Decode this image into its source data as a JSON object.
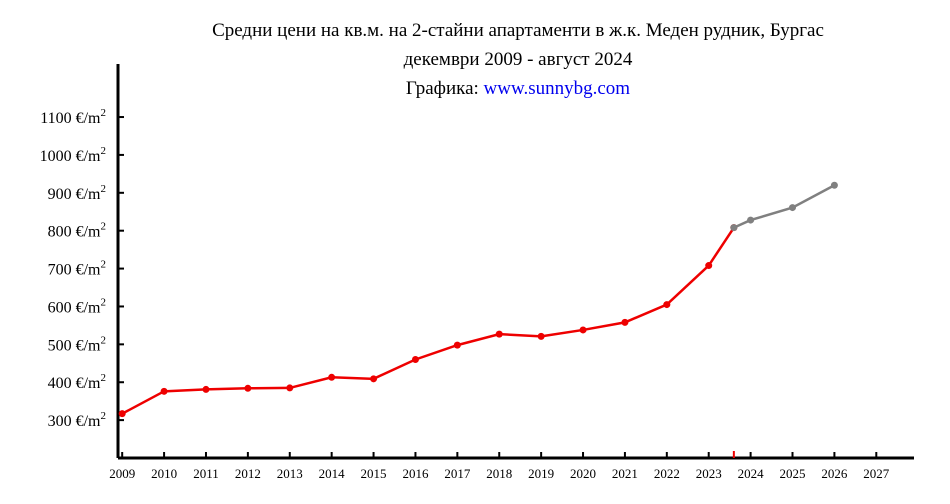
{
  "title": {
    "line1": "Средни цени на кв.м. на 2-стайни апартаменти в ж.к. Меден рудник, Бургас",
    "line2": "декември 2009 - август 2024",
    "credit_prefix": "Графика: ",
    "credit_link": "www.sunnybg.com"
  },
  "colors": {
    "actual": "#ee0000",
    "forecast": "#808080",
    "link": "#0000ee",
    "axis": "#000000"
  },
  "chart_data": {
    "type": "line",
    "title": "Средни цени на кв.м. на 2-стайни апартаменти в ж.к. Меден рудник, Бургас",
    "subtitle": "декември 2009 - август 2024",
    "y_tick_values": [
      300,
      400,
      500,
      600,
      700,
      800,
      900,
      1000,
      1100
    ],
    "y_tick_unit": "€/m",
    "y_tick_unit_sup": "2",
    "x_ticks": [
      "2009",
      "2010",
      "2011",
      "2012",
      "2013",
      "2014",
      "2015",
      "2016",
      "2017",
      "2018",
      "2019",
      "2020",
      "2021",
      "2022",
      "2023",
      "2024",
      "2025",
      "2026",
      "2027"
    ],
    "xlim": [
      2008.9,
      2027.9
    ],
    "ylim": [
      200,
      1240
    ],
    "marker_year": 2023.6,
    "series": [
      {
        "role": "actual",
        "x": [
          2009,
          2010,
          2011,
          2012,
          2013,
          2014,
          2015,
          2016,
          2017,
          2018,
          2019,
          2020,
          2021,
          2022,
          2023,
          2023.6
        ],
        "y": [
          317,
          376,
          381,
          384,
          385,
          413,
          409,
          460,
          498,
          527,
          521,
          538,
          558,
          605,
          708,
          808
        ]
      },
      {
        "role": "forecast",
        "x": [
          2023.6,
          2024,
          2025,
          2026
        ],
        "y": [
          808,
          828,
          861,
          920
        ]
      }
    ]
  }
}
